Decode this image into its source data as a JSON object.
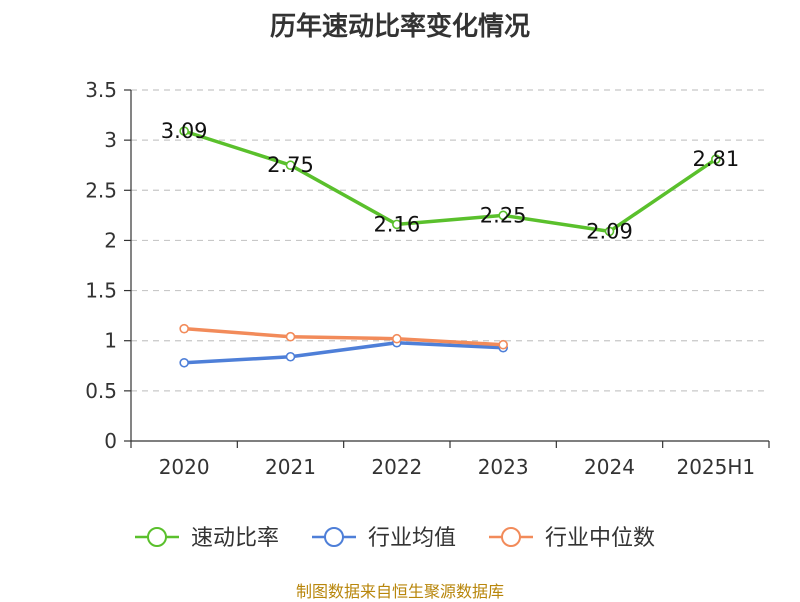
{
  "chart_data": {
    "type": "line",
    "title": "历年速动比率变化情况",
    "categories": [
      "2020",
      "2021",
      "2022",
      "2023",
      "2024",
      "2025H1"
    ],
    "ylim": [
      0,
      3.5
    ],
    "yticks": [
      "0",
      "0.5",
      "1",
      "1.5",
      "2",
      "2.5",
      "3",
      "3.5"
    ],
    "grid": true,
    "legend_position": "bottom",
    "series": [
      {
        "name": "速动比率",
        "color": "#5ac02c",
        "values": [
          3.09,
          2.75,
          2.16,
          2.25,
          2.09,
          2.81
        ],
        "labels": [
          "3.09",
          "2.75",
          "2.16",
          "2.25",
          "2.09",
          "2.81"
        ]
      },
      {
        "name": "行业均值",
        "color": "#4e7fd8",
        "values": [
          0.78,
          0.84,
          0.98,
          0.93,
          null,
          null
        ]
      },
      {
        "name": "行业中位数",
        "color": "#f28b5a",
        "values": [
          1.12,
          1.04,
          1.02,
          0.96,
          null,
          null
        ]
      }
    ]
  },
  "source_note": "制图数据来自恒生聚源数据库"
}
